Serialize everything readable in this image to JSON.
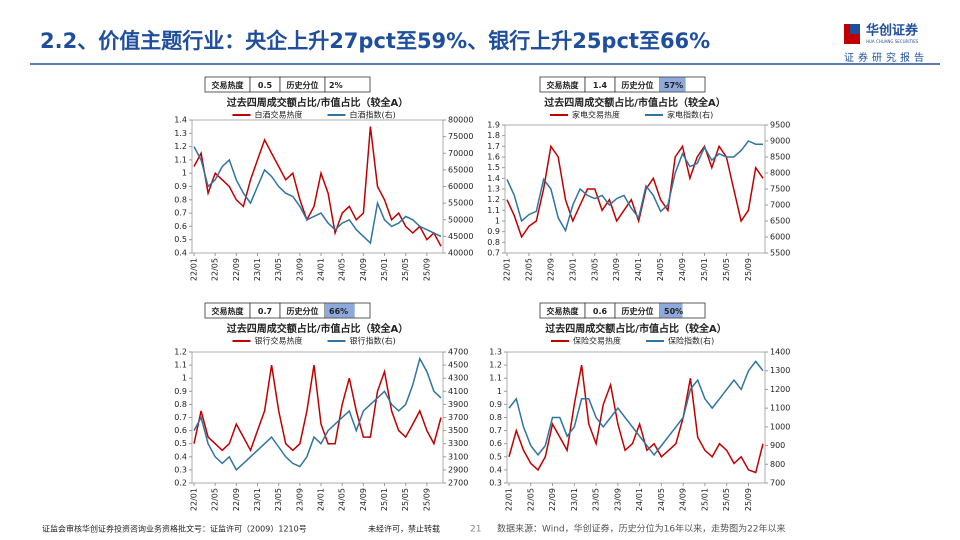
{
  "header": {
    "title": "2.2、价值主题行业：央企上升27pct至59%、银行上升25pct至66%",
    "logo": "华创证券",
    "logo_en": "HUA CHUANG SECURITIES",
    "tagline": "证券研究报告"
  },
  "chart_data": [
    {
      "type": "line",
      "title": "过去四周成交额占比/市值占比（较全A）",
      "heat_label": "交易热度",
      "heat": 0.5,
      "percentile_label": "历史分位",
      "percentile": {
        "value": 2,
        "label": "2%"
      },
      "categories": [
        "22/01",
        null,
        null,
        "22/05",
        null,
        null,
        "22/09",
        null,
        null,
        "23/01",
        null,
        null,
        "23/05",
        null,
        null,
        "23/09",
        null,
        null,
        "24/01",
        null,
        null,
        "24/05",
        null,
        null,
        "24/09",
        null,
        null,
        "25/01",
        null,
        null,
        "25/05",
        null,
        null,
        "25/09",
        null,
        null
      ],
      "ylim": [
        0.4,
        1.4
      ],
      "yticks": [
        0.4,
        0.5,
        0.6,
        0.7,
        0.8,
        0.9,
        1,
        1.1,
        1.2,
        1.3,
        1.4
      ],
      "y2lim": [
        40000,
        80000
      ],
      "y2ticks": [
        40000,
        45000,
        50000,
        55000,
        60000,
        65000,
        70000,
        75000,
        80000
      ],
      "series": [
        {
          "name": "白酒交易热度",
          "color": "#c00000",
          "values": [
            1.05,
            1.15,
            0.85,
            1.0,
            0.95,
            0.9,
            0.8,
            0.75,
            0.95,
            1.1,
            1.25,
            1.15,
            1.05,
            0.95,
            1.0,
            0.8,
            0.65,
            0.75,
            1.0,
            0.85,
            0.55,
            0.7,
            0.75,
            0.65,
            0.7,
            1.35,
            0.9,
            0.8,
            0.65,
            0.7,
            0.6,
            0.55,
            0.6,
            0.5,
            0.55,
            0.45
          ]
        },
        {
          "name": "白酒指数(右)",
          "color": "#2e75a0",
          "axis": "y2",
          "values": [
            72000,
            68000,
            60000,
            62000,
            66000,
            68000,
            62000,
            58000,
            55000,
            60000,
            65000,
            63000,
            60000,
            58000,
            57000,
            54000,
            50000,
            51000,
            52000,
            49000,
            47000,
            49000,
            50000,
            47000,
            45000,
            43000,
            55000,
            50000,
            48000,
            49000,
            51000,
            50000,
            48000,
            47000,
            46000,
            45000
          ]
        }
      ]
    },
    {
      "type": "line",
      "title": "过去四周成交额占比/市值占比（较全A）",
      "heat_label": "交易热度",
      "heat": 1.4,
      "percentile_label": "历史分位",
      "percentile": {
        "value": 57,
        "label": "57%"
      },
      "categories": [
        "22/01",
        null,
        null,
        "22/05",
        null,
        null,
        "22/09",
        null,
        null,
        "23/01",
        null,
        null,
        "23/05",
        null,
        null,
        "23/09",
        null,
        null,
        "24/01",
        null,
        null,
        "24/05",
        null,
        null,
        "24/09",
        null,
        null,
        "25/01",
        null,
        null,
        "25/05",
        null,
        null,
        "25/09",
        null,
        null
      ],
      "ylim": [
        0.7,
        1.9
      ],
      "yticks": [
        0.7,
        0.8,
        0.9,
        1,
        1.1,
        1.2,
        1.3,
        1.4,
        1.5,
        1.6,
        1.7,
        1.8,
        1.9
      ],
      "y2lim": [
        5500,
        9500
      ],
      "y2ticks": [
        5500,
        6000,
        6500,
        7000,
        7500,
        8000,
        8500,
        9000,
        9500
      ],
      "series": [
        {
          "name": "家电交易热度",
          "color": "#c00000",
          "values": [
            1.2,
            1.05,
            0.85,
            0.95,
            1.0,
            1.3,
            1.7,
            1.6,
            1.2,
            1.0,
            1.15,
            1.3,
            1.3,
            1.1,
            1.2,
            1.0,
            1.1,
            1.2,
            1.0,
            1.3,
            1.4,
            1.2,
            1.1,
            1.6,
            1.7,
            1.4,
            1.6,
            1.7,
            1.5,
            1.7,
            1.6,
            1.3,
            1.0,
            1.1,
            1.5,
            1.4
          ]
        },
        {
          "name": "家电指数(右)",
          "color": "#2e75a0",
          "axis": "y2",
          "values": [
            7800,
            7300,
            6500,
            6700,
            6800,
            7800,
            7500,
            6600,
            6200,
            7000,
            7500,
            7300,
            7200,
            7300,
            7000,
            7200,
            7300,
            6900,
            6600,
            7600,
            7300,
            6800,
            7000,
            8000,
            8600,
            8200,
            8300,
            8800,
            8400,
            8600,
            8500,
            8500,
            8700,
            9000,
            8900,
            8900
          ]
        }
      ]
    },
    {
      "type": "line",
      "title": "过去四周成交额占比/市值占比（较全A）",
      "heat_label": "交易热度",
      "heat": 0.7,
      "percentile_label": "历史分位",
      "percentile": {
        "value": 66,
        "label": "66%"
      },
      "categories": [
        "22/01",
        null,
        null,
        "22/05",
        null,
        null,
        "22/09",
        null,
        null,
        "23/01",
        null,
        null,
        "23/05",
        null,
        null,
        "23/09",
        null,
        null,
        "24/01",
        null,
        null,
        "24/05",
        null,
        null,
        "24/09",
        null,
        null,
        "25/01",
        null,
        null,
        "25/05",
        null,
        null,
        "25/09",
        null,
        null
      ],
      "ylim": [
        0.2,
        1.2
      ],
      "yticks": [
        0.2,
        0.3,
        0.4,
        0.5,
        0.6,
        0.7,
        0.8,
        0.9,
        1,
        1.1,
        1.2
      ],
      "y2lim": [
        2700,
        4700
      ],
      "y2ticks": [
        2700,
        2900,
        3100,
        3300,
        3500,
        3700,
        3900,
        4100,
        4300,
        4500,
        4700
      ],
      "series": [
        {
          "name": "银行交易热度",
          "color": "#c00000",
          "values": [
            0.5,
            0.75,
            0.55,
            0.5,
            0.45,
            0.5,
            0.65,
            0.55,
            0.45,
            0.6,
            0.75,
            1.1,
            0.75,
            0.5,
            0.45,
            0.5,
            0.75,
            1.1,
            0.65,
            0.5,
            0.5,
            0.8,
            1.0,
            0.75,
            0.55,
            0.55,
            0.9,
            1.05,
            0.75,
            0.6,
            0.55,
            0.65,
            0.75,
            0.6,
            0.5,
            0.7
          ]
        },
        {
          "name": "银行指数(右)",
          "color": "#2e75a0",
          "axis": "y2",
          "values": [
            3500,
            3700,
            3300,
            3100,
            3000,
            3100,
            2900,
            3000,
            3100,
            3200,
            3300,
            3400,
            3250,
            3100,
            3000,
            2950,
            3100,
            3400,
            3300,
            3500,
            3600,
            3700,
            3800,
            3500,
            3800,
            3900,
            4000,
            4100,
            3900,
            3800,
            3900,
            4200,
            4600,
            4400,
            4100,
            4000
          ]
        }
      ]
    },
    {
      "type": "line",
      "title": "过去四周成交额占比/市值占比（较全A）",
      "heat_label": "交易热度",
      "heat": 0.6,
      "percentile_label": "历史分位",
      "percentile": {
        "value": 50,
        "label": "50%"
      },
      "categories": [
        "22/01",
        null,
        null,
        "22/05",
        null,
        null,
        "22/09",
        null,
        null,
        "23/01",
        null,
        null,
        "23/05",
        null,
        null,
        "23/09",
        null,
        null,
        "24/01",
        null,
        null,
        "24/05",
        null,
        null,
        "24/09",
        null,
        null,
        "25/01",
        null,
        null,
        "25/05",
        null,
        null,
        "25/09",
        null,
        null
      ],
      "ylim": [
        0.3,
        1.3
      ],
      "yticks": [
        0.3,
        0.4,
        0.5,
        0.6,
        0.7,
        0.8,
        0.9,
        1,
        1.1,
        1.2,
        1.3
      ],
      "y2lim": [
        700,
        1400
      ],
      "y2ticks": [
        700,
        800,
        900,
        1000,
        1100,
        1200,
        1300,
        1400
      ],
      "series": [
        {
          "name": "保险交易热度",
          "color": "#c00000",
          "values": [
            0.5,
            0.7,
            0.55,
            0.45,
            0.4,
            0.5,
            0.75,
            0.65,
            0.55,
            0.9,
            1.2,
            0.75,
            0.6,
            0.9,
            1.05,
            0.75,
            0.55,
            0.6,
            0.75,
            0.55,
            0.6,
            0.5,
            0.55,
            0.6,
            0.8,
            1.1,
            0.65,
            0.55,
            0.5,
            0.6,
            0.55,
            0.45,
            0.5,
            0.4,
            0.38,
            0.6
          ]
        },
        {
          "name": "保险指数(右)",
          "color": "#2e75a0",
          "axis": "y2",
          "values": [
            1100,
            1150,
            1000,
            900,
            850,
            900,
            1050,
            1050,
            950,
            1000,
            1150,
            1150,
            1050,
            1000,
            1050,
            1100,
            1050,
            1000,
            950,
            900,
            850,
            900,
            950,
            1000,
            1050,
            1200,
            1250,
            1150,
            1100,
            1150,
            1200,
            1250,
            1200,
            1300,
            1350,
            1300
          ]
        }
      ]
    }
  ],
  "footer": {
    "license": "证监会审核华创证券投资咨询业务资格批文号：证监许可（2009）1210号",
    "notice": "未经许可，禁止转载",
    "page": "21",
    "source": "数据来源：Wind，华创证券，历史分位为16年以来，走势图为22年以来"
  }
}
